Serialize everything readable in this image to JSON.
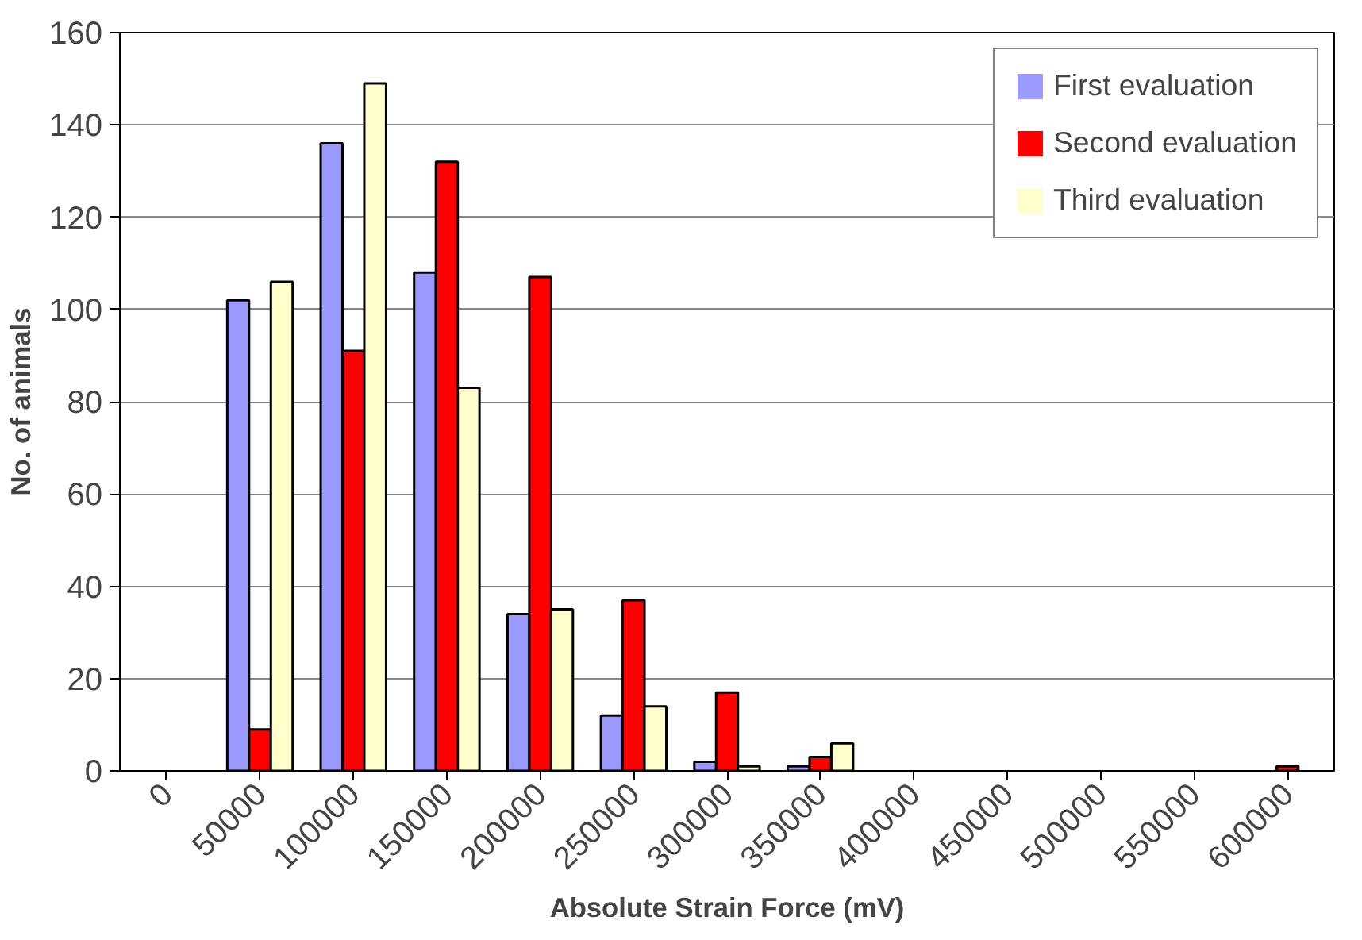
{
  "chart_data": {
    "type": "bar",
    "xlabel": "Absolute Strain Force (mV)",
    "ylabel": "No. of animals",
    "categories": [
      "0",
      "50000",
      "100000",
      "150000",
      "200000",
      "250000",
      "300000",
      "350000",
      "400000",
      "450000",
      "500000",
      "550000",
      "600000"
    ],
    "series": [
      {
        "name": "First evaluation",
        "color": "#9999ff",
        "values": [
          0,
          102,
          136,
          108,
          34,
          12,
          2,
          1,
          0,
          0,
          0,
          0,
          0
        ]
      },
      {
        "name": "Second evaluation",
        "color": "#ff0000",
        "values": [
          0,
          9,
          91,
          132,
          107,
          37,
          17,
          3,
          0,
          0,
          0,
          0,
          1
        ]
      },
      {
        "name": "Third evaluation",
        "color": "#ffffcc",
        "values": [
          0,
          106,
          149,
          83,
          35,
          14,
          1,
          6,
          0,
          0,
          0,
          0,
          0
        ]
      }
    ],
    "ylim": [
      0,
      160
    ],
    "yticks": [
      0,
      20,
      40,
      60,
      80,
      100,
      120,
      140,
      160
    ],
    "grid": "y",
    "legend": "top right"
  }
}
